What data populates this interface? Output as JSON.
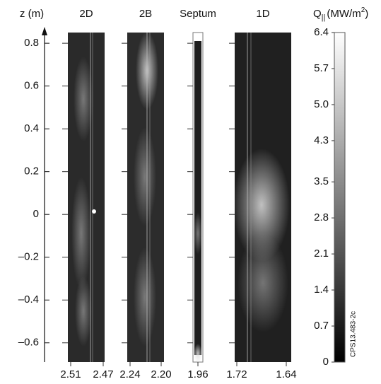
{
  "chart_data": {
    "type": "heatmap-strips",
    "ylabel": "z (m)",
    "ylim": [
      -0.69,
      0.85
    ],
    "yticks": [
      {
        "value": -0.6,
        "label": "–0.6"
      },
      {
        "value": -0.4,
        "label": "–0.4"
      },
      {
        "value": -0.2,
        "label": "–0.2"
      },
      0,
      0.2,
      0.4,
      0.6,
      0.8
    ],
    "panels": [
      {
        "name": "2D",
        "xlim": [
          2.51,
          2.47
        ],
        "xticks": [
          2.51,
          2.47
        ]
      },
      {
        "name": "2B",
        "xlim": [
          2.24,
          2.2
        ],
        "xticks": [
          2.24,
          {
            "value": 2.2,
            "label": "2.20"
          }
        ]
      },
      {
        "name": "Septum",
        "xticks": [
          1.96
        ]
      },
      {
        "name": "1D",
        "xlim": [
          1.72,
          1.64
        ],
        "xticks": [
          1.72,
          1.64
        ]
      }
    ],
    "colorbar": {
      "label": [
        "Q",
        "||",
        "(MW/m",
        "2",
        ")"
      ],
      "clim": [
        0,
        6.4
      ],
      "ticks": [
        0,
        0.7,
        1.4,
        2.1,
        2.8,
        3.5,
        4.3,
        {
          "value": 5,
          "label": "5.0"
        },
        5.7,
        6.4
      ]
    },
    "annotation": "CPS13.483-2c"
  }
}
